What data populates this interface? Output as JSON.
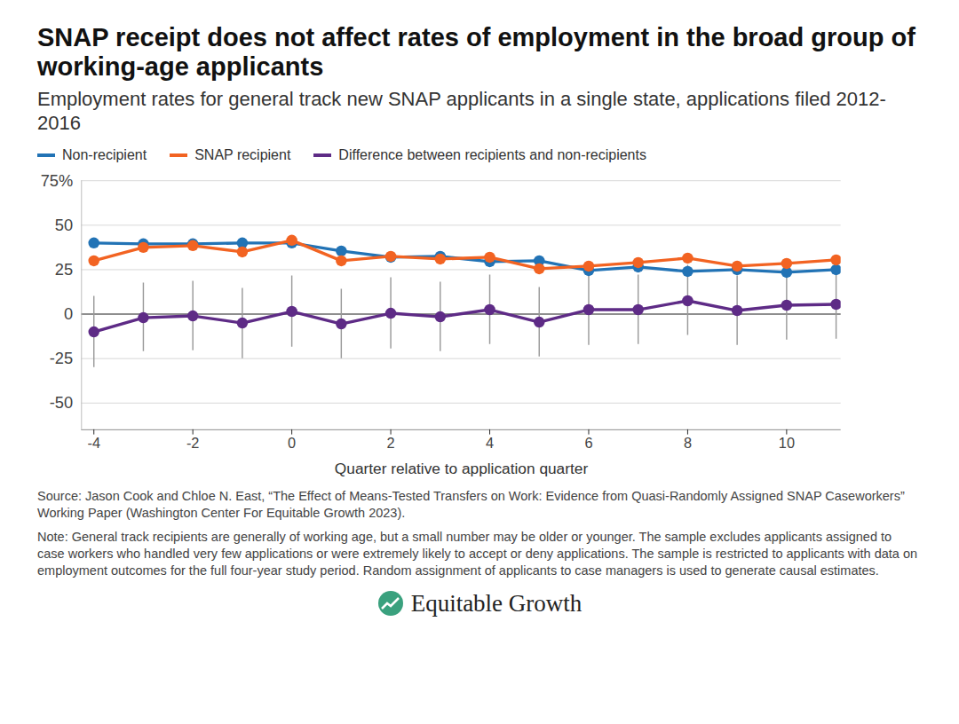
{
  "chart_data": {
    "type": "line",
    "title": "SNAP receipt does not affect rates of employment in the broad group of working-age applicants",
    "subtitle": "Employment rates for general track new SNAP applicants in a single state, applications filed 2012-2016",
    "x_label": "Quarter relative to application quarter",
    "x": [
      -4,
      -3,
      -2,
      -1,
      0,
      1,
      2,
      3,
      4,
      5,
      6,
      7,
      8,
      9,
      10,
      11
    ],
    "xlim": [
      -4.25,
      11.1
    ],
    "xticks": [
      -4,
      -2,
      0,
      2,
      4,
      6,
      8,
      10
    ],
    "ylim": [
      -65,
      75
    ],
    "yticks": [
      -50,
      -25,
      0,
      25,
      50,
      {
        "value": 75,
        "label": "75%"
      }
    ],
    "grid": true,
    "marker": "circle",
    "series": [
      {
        "name": "Non-recipient",
        "color": "#2273b5",
        "values": [
          40,
          39.5,
          39.5,
          40,
          40,
          35.5,
          32,
          32.5,
          29.5,
          30,
          24.5,
          26.5,
          24,
          25,
          23.5,
          25
        ]
      },
      {
        "name": "SNAP recipient",
        "color": "#f26322",
        "values": [
          30,
          37.5,
          38.5,
          35,
          41.5,
          30,
          32.5,
          31,
          32,
          25.5,
          27,
          29,
          31.5,
          27,
          28.5,
          30.5
        ]
      },
      {
        "name": "Difference between recipients and non-recipients",
        "color": "#5e2b86",
        "values": [
          -10,
          -2,
          -1,
          -5,
          1.5,
          -5.5,
          0.5,
          -1.5,
          2.5,
          -4.5,
          2.5,
          2.5,
          7.5,
          2,
          5,
          5.5
        ],
        "ci_low": [
          -30,
          -21,
          -20.5,
          -25,
          -18.5,
          -25,
          -19.5,
          -21,
          -17,
          -24,
          -17.5,
          -17,
          -12,
          -17.5,
          -14.5,
          -14
        ],
        "ci_high": [
          10,
          17.5,
          18.5,
          14.5,
          21.5,
          14,
          20.5,
          18,
          22,
          15,
          22.5,
          22,
          27.5,
          21.5,
          24.5,
          25
        ]
      }
    ],
    "source": "Source: Jason Cook and Chloe N. East, “The Effect of Means-Tested Transfers on Work: Evidence from Quasi-Randomly Assigned SNAP Caseworkers” Working Paper (Washington Center For Equitable Growth 2023).",
    "note": "Note: General track recipients are generally of working age, but a small number may be older or younger. The sample excludes applicants assigned to case workers who handled very few applications or were extremely likely to accept or deny applications. The sample is restricted to applicants with data on employment outcomes for the full four-year study period. Random assignment of applicants to case managers is used to generate causal estimates.",
    "brand": "Equitable Growth"
  }
}
